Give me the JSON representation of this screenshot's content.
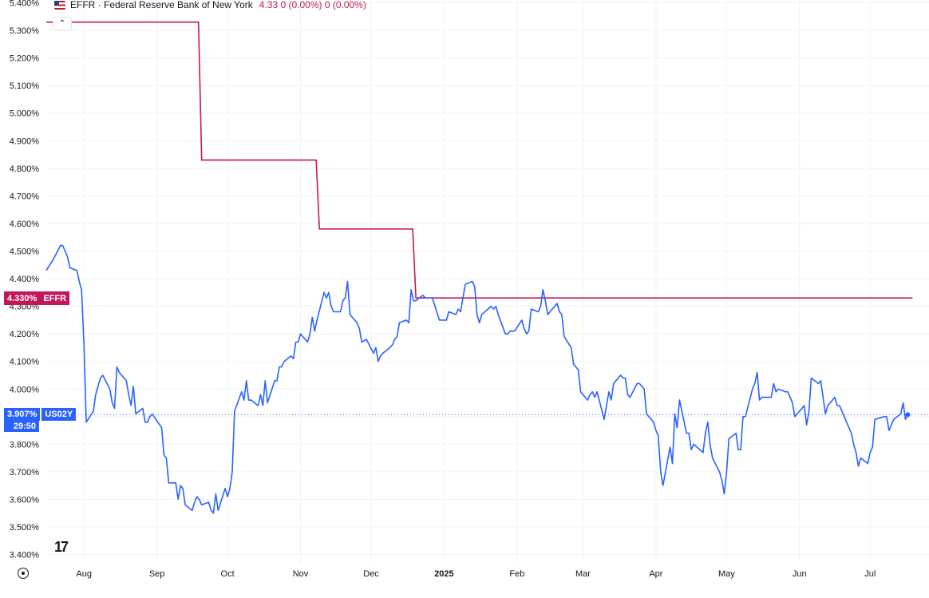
{
  "legend": {
    "name": "EFFR · Federal Reserve Bank of New York",
    "values": "4.33  0 (0.00%)  0 (0.00%)",
    "flag_icon": "us-flag-icon"
  },
  "tags": {
    "effr_value": "4.330%",
    "effr_symbol": "EFFR",
    "us02y_value": "3.907%",
    "us02y_symbol": "US02Y",
    "us02y_countdown": "29:50"
  },
  "logo": "17",
  "colors": {
    "effr": "#c2185b",
    "us02y": "#2962ff",
    "grid": "#f0f3fa",
    "axis_text": "#131722"
  },
  "chart_data": {
    "type": "line",
    "title": "",
    "xlabel": "",
    "ylabel": "",
    "ylim": [
      3.37,
      5.41
    ],
    "y_ticks": [
      "5.400%",
      "5.300%",
      "5.200%",
      "5.100%",
      "5.000%",
      "4.900%",
      "4.800%",
      "4.700%",
      "4.600%",
      "4.500%",
      "4.400%",
      "4.300%",
      "4.200%",
      "4.100%",
      "4.000%",
      "3.900%",
      "3.800%",
      "3.700%",
      "3.600%",
      "3.500%",
      "3.400%"
    ],
    "x_ticks": [
      {
        "label": "Aug",
        "date": "2024-08-01"
      },
      {
        "label": "Sep",
        "date": "2024-09-01"
      },
      {
        "label": "Oct",
        "date": "2024-10-01"
      },
      {
        "label": "Nov",
        "date": "2024-11-01"
      },
      {
        "label": "Dec",
        "date": "2024-12-01"
      },
      {
        "label": "2025",
        "date": "2025-01-01"
      },
      {
        "label": "Feb",
        "date": "2025-02-01"
      },
      {
        "label": "Mar",
        "date": "2025-03-01"
      },
      {
        "label": "Apr",
        "date": "2025-04-01"
      },
      {
        "label": "May",
        "date": "2025-05-01"
      },
      {
        "label": "Jun",
        "date": "2025-06-01"
      },
      {
        "label": "Jul",
        "date": "2025-07-01"
      }
    ],
    "x_range": [
      "2024-07-16",
      "2025-07-26"
    ],
    "series": [
      {
        "name": "EFFR",
        "style": "step",
        "points": [
          [
            "2024-07-16",
            5.33
          ],
          [
            "2024-09-19",
            4.83
          ],
          [
            "2024-11-08",
            4.58
          ],
          [
            "2024-12-19",
            4.33
          ],
          [
            "2025-07-18",
            4.33
          ]
        ]
      },
      {
        "name": "US02Y",
        "style": "line",
        "points": [
          [
            "2024-07-16",
            4.43
          ],
          [
            "2024-07-19",
            4.47
          ],
          [
            "2024-07-22",
            4.52
          ],
          [
            "2024-07-23",
            4.52
          ],
          [
            "2024-07-25",
            4.48
          ],
          [
            "2024-07-26",
            4.44
          ],
          [
            "2024-07-29",
            4.43
          ],
          [
            "2024-07-30",
            4.39
          ],
          [
            "2024-07-31",
            4.36
          ],
          [
            "2024-08-01",
            4.16
          ],
          [
            "2024-08-02",
            3.88
          ],
          [
            "2024-08-05",
            3.92
          ],
          [
            "2024-08-06",
            3.98
          ],
          [
            "2024-08-08",
            4.04
          ],
          [
            "2024-08-09",
            4.05
          ],
          [
            "2024-08-12",
            4.0
          ],
          [
            "2024-08-13",
            3.95
          ],
          [
            "2024-08-14",
            3.93
          ],
          [
            "2024-08-15",
            4.08
          ],
          [
            "2024-08-16",
            4.06
          ],
          [
            "2024-08-19",
            4.03
          ],
          [
            "2024-08-20",
            3.98
          ],
          [
            "2024-08-21",
            3.94
          ],
          [
            "2024-08-22",
            4.01
          ],
          [
            "2024-08-23",
            3.91
          ],
          [
            "2024-08-26",
            3.93
          ],
          [
            "2024-08-27",
            3.88
          ],
          [
            "2024-08-28",
            3.88
          ],
          [
            "2024-08-29",
            3.9
          ],
          [
            "2024-08-30",
            3.91
          ],
          [
            "2024-09-03",
            3.86
          ],
          [
            "2024-09-04",
            3.76
          ],
          [
            "2024-09-05",
            3.75
          ],
          [
            "2024-09-06",
            3.66
          ],
          [
            "2024-09-09",
            3.66
          ],
          [
            "2024-09-10",
            3.6
          ],
          [
            "2024-09-11",
            3.65
          ],
          [
            "2024-09-12",
            3.64
          ],
          [
            "2024-09-13",
            3.58
          ],
          [
            "2024-09-16",
            3.56
          ],
          [
            "2024-09-17",
            3.59
          ],
          [
            "2024-09-18",
            3.61
          ],
          [
            "2024-09-19",
            3.6
          ],
          [
            "2024-09-20",
            3.58
          ],
          [
            "2024-09-23",
            3.59
          ],
          [
            "2024-09-24",
            3.56
          ],
          [
            "2024-09-25",
            3.55
          ],
          [
            "2024-09-26",
            3.62
          ],
          [
            "2024-09-27",
            3.56
          ],
          [
            "2024-09-30",
            3.64
          ],
          [
            "2024-10-01",
            3.61
          ],
          [
            "2024-10-02",
            3.64
          ],
          [
            "2024-10-03",
            3.7
          ],
          [
            "2024-10-04",
            3.92
          ],
          [
            "2024-10-07",
            3.99
          ],
          [
            "2024-10-08",
            3.96
          ],
          [
            "2024-10-09",
            4.03
          ],
          [
            "2024-10-10",
            3.96
          ],
          [
            "2024-10-11",
            3.96
          ],
          [
            "2024-10-14",
            3.94
          ],
          [
            "2024-10-15",
            3.98
          ],
          [
            "2024-10-16",
            3.94
          ],
          [
            "2024-10-17",
            4.03
          ],
          [
            "2024-10-18",
            3.95
          ],
          [
            "2024-10-21",
            4.03
          ],
          [
            "2024-10-22",
            4.03
          ],
          [
            "2024-10-23",
            4.08
          ],
          [
            "2024-10-24",
            4.08
          ],
          [
            "2024-10-25",
            4.1
          ],
          [
            "2024-10-28",
            4.12
          ],
          [
            "2024-10-29",
            4.11
          ],
          [
            "2024-10-30",
            4.17
          ],
          [
            "2024-10-31",
            4.17
          ],
          [
            "2024-11-01",
            4.2
          ],
          [
            "2024-11-04",
            4.17
          ],
          [
            "2024-11-05",
            4.2
          ],
          [
            "2024-11-06",
            4.26
          ],
          [
            "2024-11-07",
            4.21
          ],
          [
            "2024-11-08",
            4.25
          ],
          [
            "2024-11-11",
            4.35
          ],
          [
            "2024-11-12",
            4.33
          ],
          [
            "2024-11-13",
            4.35
          ],
          [
            "2024-11-14",
            4.3
          ],
          [
            "2024-11-15",
            4.28
          ],
          [
            "2024-11-18",
            4.28
          ],
          [
            "2024-11-19",
            4.32
          ],
          [
            "2024-11-20",
            4.33
          ],
          [
            "2024-11-21",
            4.39
          ],
          [
            "2024-11-22",
            4.27
          ],
          [
            "2024-11-25",
            4.24
          ],
          [
            "2024-11-26",
            4.22
          ],
          [
            "2024-11-27",
            4.17
          ],
          [
            "2024-11-29",
            4.18
          ],
          [
            "2024-12-02",
            4.13
          ],
          [
            "2024-12-03",
            4.15
          ],
          [
            "2024-12-04",
            4.1
          ],
          [
            "2024-12-05",
            4.12
          ],
          [
            "2024-12-06",
            4.13
          ],
          [
            "2024-12-09",
            4.15
          ],
          [
            "2024-12-10",
            4.16
          ],
          [
            "2024-12-11",
            4.18
          ],
          [
            "2024-12-12",
            4.19
          ],
          [
            "2024-12-13",
            4.24
          ],
          [
            "2024-12-16",
            4.25
          ],
          [
            "2024-12-17",
            4.24
          ],
          [
            "2024-12-18",
            4.36
          ],
          [
            "2024-12-19",
            4.32
          ],
          [
            "2024-12-20",
            4.32
          ],
          [
            "2024-12-23",
            4.34
          ],
          [
            "2024-12-24",
            4.33
          ],
          [
            "2024-12-26",
            4.33
          ],
          [
            "2024-12-27",
            4.33
          ],
          [
            "2024-12-30",
            4.25
          ],
          [
            "2024-12-31",
            4.25
          ],
          [
            "2025-01-02",
            4.25
          ],
          [
            "2025-01-03",
            4.28
          ],
          [
            "2025-01-06",
            4.27
          ],
          [
            "2025-01-07",
            4.29
          ],
          [
            "2025-01-08",
            4.28
          ],
          [
            "2025-01-10",
            4.38
          ],
          [
            "2025-01-13",
            4.39
          ],
          [
            "2025-01-14",
            4.37
          ],
          [
            "2025-01-15",
            4.27
          ],
          [
            "2025-01-16",
            4.24
          ],
          [
            "2025-01-17",
            4.27
          ],
          [
            "2025-01-21",
            4.3
          ],
          [
            "2025-01-22",
            4.29
          ],
          [
            "2025-01-23",
            4.3
          ],
          [
            "2025-01-24",
            4.27
          ],
          [
            "2025-01-27",
            4.2
          ],
          [
            "2025-01-28",
            4.2
          ],
          [
            "2025-01-29",
            4.21
          ],
          [
            "2025-01-30",
            4.21
          ],
          [
            "2025-01-31",
            4.21
          ],
          [
            "2025-02-03",
            4.25
          ],
          [
            "2025-02-04",
            4.22
          ],
          [
            "2025-02-05",
            4.2
          ],
          [
            "2025-02-06",
            4.21
          ],
          [
            "2025-02-07",
            4.29
          ],
          [
            "2025-02-10",
            4.28
          ],
          [
            "2025-02-11",
            4.3
          ],
          [
            "2025-02-12",
            4.36
          ],
          [
            "2025-02-13",
            4.32
          ],
          [
            "2025-02-14",
            4.27
          ],
          [
            "2025-02-18",
            4.31
          ],
          [
            "2025-02-19",
            4.28
          ],
          [
            "2025-02-20",
            4.27
          ],
          [
            "2025-02-21",
            4.19
          ],
          [
            "2025-02-24",
            4.15
          ],
          [
            "2025-02-25",
            4.09
          ],
          [
            "2025-02-26",
            4.08
          ],
          [
            "2025-02-27",
            4.07
          ],
          [
            "2025-02-28",
            3.99
          ],
          [
            "2025-03-03",
            3.96
          ],
          [
            "2025-03-04",
            3.98
          ],
          [
            "2025-03-05",
            3.99
          ],
          [
            "2025-03-06",
            3.97
          ],
          [
            "2025-03-07",
            3.99
          ],
          [
            "2025-03-10",
            3.89
          ],
          [
            "2025-03-11",
            3.94
          ],
          [
            "2025-03-12",
            3.99
          ],
          [
            "2025-03-13",
            3.96
          ],
          [
            "2025-03-14",
            4.02
          ],
          [
            "2025-03-17",
            4.05
          ],
          [
            "2025-03-18",
            4.04
          ],
          [
            "2025-03-19",
            4.04
          ],
          [
            "2025-03-20",
            3.98
          ],
          [
            "2025-03-21",
            3.97
          ],
          [
            "2025-03-24",
            4.02
          ],
          [
            "2025-03-25",
            4.02
          ],
          [
            "2025-03-26",
            4.01
          ],
          [
            "2025-03-27",
            4.0
          ],
          [
            "2025-03-28",
            3.91
          ],
          [
            "2025-03-31",
            3.88
          ],
          [
            "2025-04-01",
            3.85
          ],
          [
            "2025-04-02",
            3.83
          ],
          [
            "2025-04-03",
            3.7
          ],
          [
            "2025-04-04",
            3.65
          ],
          [
            "2025-04-07",
            3.79
          ],
          [
            "2025-04-08",
            3.73
          ],
          [
            "2025-04-09",
            3.91
          ],
          [
            "2025-04-10",
            3.86
          ],
          [
            "2025-04-11",
            3.96
          ],
          [
            "2025-04-14",
            3.84
          ],
          [
            "2025-04-15",
            3.84
          ],
          [
            "2025-04-16",
            3.78
          ],
          [
            "2025-04-17",
            3.8
          ],
          [
            "2025-04-21",
            3.77
          ],
          [
            "2025-04-22",
            3.84
          ],
          [
            "2025-04-23",
            3.88
          ],
          [
            "2025-04-24",
            3.8
          ],
          [
            "2025-04-25",
            3.75
          ],
          [
            "2025-04-28",
            3.7
          ],
          [
            "2025-04-29",
            3.67
          ],
          [
            "2025-04-30",
            3.62
          ],
          [
            "2025-05-01",
            3.7
          ],
          [
            "2025-05-02",
            3.82
          ],
          [
            "2025-05-05",
            3.84
          ],
          [
            "2025-05-06",
            3.78
          ],
          [
            "2025-05-07",
            3.78
          ],
          [
            "2025-05-08",
            3.9
          ],
          [
            "2025-05-09",
            3.9
          ],
          [
            "2025-05-12",
            4.0
          ],
          [
            "2025-05-13",
            4.02
          ],
          [
            "2025-05-14",
            4.06
          ],
          [
            "2025-05-15",
            3.96
          ],
          [
            "2025-05-16",
            3.97
          ],
          [
            "2025-05-19",
            3.97
          ],
          [
            "2025-05-20",
            3.97
          ],
          [
            "2025-05-21",
            4.02
          ],
          [
            "2025-05-22",
            3.99
          ],
          [
            "2025-05-23",
            4.0
          ],
          [
            "2025-05-26",
            3.99
          ],
          [
            "2025-05-27",
            3.99
          ],
          [
            "2025-05-28",
            3.97
          ],
          [
            "2025-05-29",
            3.95
          ],
          [
            "2025-05-30",
            3.9
          ],
          [
            "2025-06-02",
            3.93
          ],
          [
            "2025-06-03",
            3.94
          ],
          [
            "2025-06-04",
            3.87
          ],
          [
            "2025-06-05",
            3.92
          ],
          [
            "2025-06-06",
            4.04
          ],
          [
            "2025-06-09",
            4.02
          ],
          [
            "2025-06-10",
            4.03
          ],
          [
            "2025-06-11",
            3.97
          ],
          [
            "2025-06-12",
            3.91
          ],
          [
            "2025-06-13",
            3.94
          ],
          [
            "2025-06-16",
            3.97
          ],
          [
            "2025-06-17",
            3.94
          ],
          [
            "2025-06-18",
            3.94
          ],
          [
            "2025-06-20",
            3.9
          ],
          [
            "2025-06-23",
            3.84
          ],
          [
            "2025-06-24",
            3.8
          ],
          [
            "2025-06-25",
            3.77
          ],
          [
            "2025-06-26",
            3.72
          ],
          [
            "2025-06-27",
            3.75
          ],
          [
            "2025-06-30",
            3.73
          ],
          [
            "2025-07-01",
            3.77
          ],
          [
            "2025-07-02",
            3.79
          ],
          [
            "2025-07-03",
            3.89
          ],
          [
            "2025-07-07",
            3.9
          ],
          [
            "2025-07-08",
            3.9
          ],
          [
            "2025-07-09",
            3.85
          ],
          [
            "2025-07-10",
            3.87
          ],
          [
            "2025-07-11",
            3.89
          ],
          [
            "2025-07-14",
            3.91
          ],
          [
            "2025-07-15",
            3.95
          ],
          [
            "2025-07-16",
            3.89
          ],
          [
            "2025-07-17",
            3.907
          ]
        ]
      }
    ],
    "current_value": 3.907,
    "last_effr": 4.33,
    "grid": true,
    "legend_position": "top-left"
  }
}
